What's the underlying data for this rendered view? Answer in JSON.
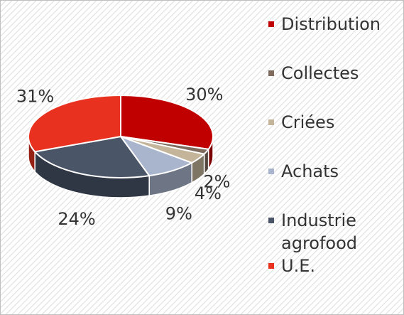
{
  "chart_data": {
    "type": "pie",
    "categories": [
      "Distribution",
      "Collectes",
      "Criées",
      "Achats",
      "Industrie agrofood",
      "U.E."
    ],
    "values": [
      30,
      2,
      4,
      9,
      24,
      31
    ],
    "value_labels": [
      "30%",
      "2%",
      "4%",
      "9%",
      "24%",
      "31%"
    ],
    "colors": [
      "#c00000",
      "#7f6a5e",
      "#c4b49a",
      "#a9b5cc",
      "#4a5568",
      "#e8311f"
    ],
    "legend": "right"
  }
}
